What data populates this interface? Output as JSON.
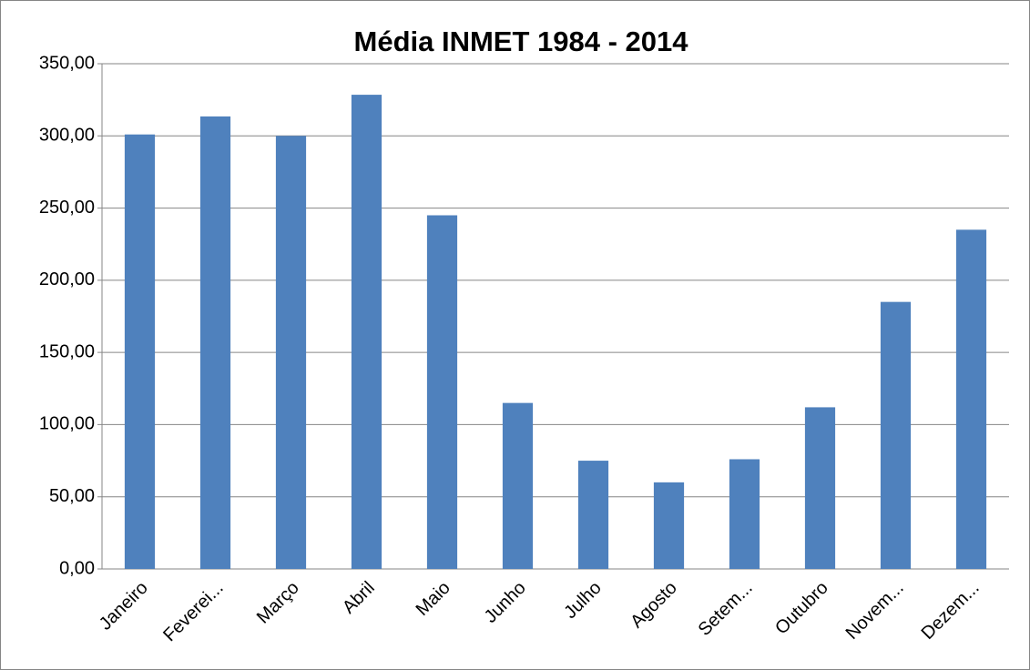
{
  "chart_data": {
    "type": "bar",
    "title": "Média  INMET 1984 - 2014",
    "categories": [
      "Janeiro",
      "Feverei...",
      "Março",
      "Abril",
      "Maio",
      "Junho",
      "Julho",
      "Agosto",
      "Setem...",
      "Outubro",
      "Novem...",
      "Dezem..."
    ],
    "values": [
      301,
      313.5,
      300,
      328.5,
      245,
      115,
      75,
      60,
      76,
      112,
      185,
      235
    ],
    "color": "#4f81bd",
    "ylim": [
      0,
      350
    ],
    "yticks": [
      {
        "value": 0,
        "label": "0,00"
      },
      {
        "value": 50,
        "label": "50,00"
      },
      {
        "value": 100,
        "label": "100,00"
      },
      {
        "value": 150,
        "label": "150,00"
      },
      {
        "value": 200,
        "label": "200,00"
      },
      {
        "value": 250,
        "label": "250,00"
      },
      {
        "value": 300,
        "label": "300,00"
      },
      {
        "value": 350,
        "label": "350,00"
      }
    ],
    "grid": true
  }
}
